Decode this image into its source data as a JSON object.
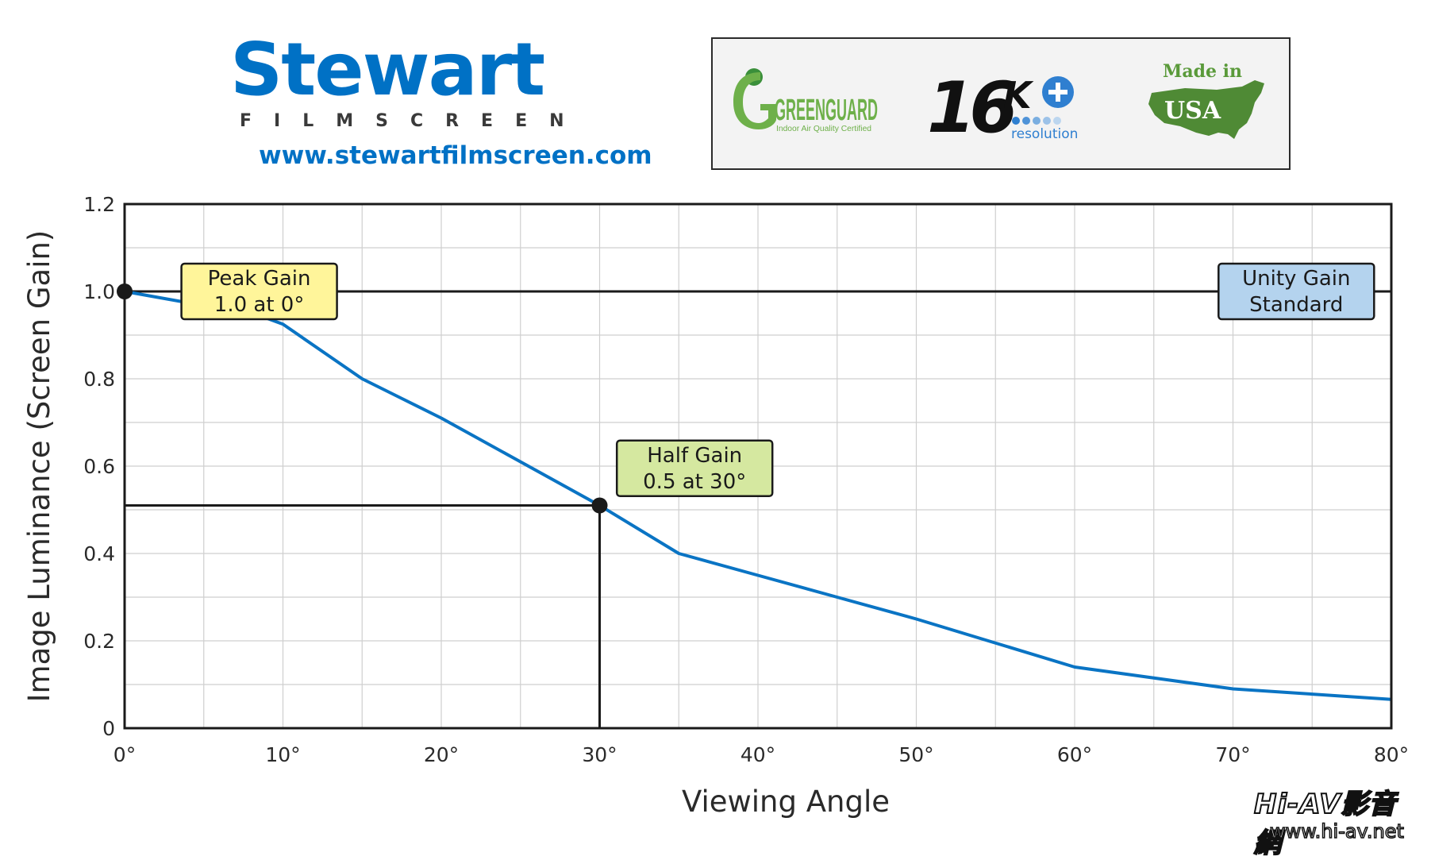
{
  "header": {
    "brand": {
      "name": "Stewart",
      "subtitle": "FILMSCREEN",
      "url": "www.stewartfilmscreen.com",
      "color": "#0071c5"
    },
    "certifications": [
      {
        "name": "greenguard-logo",
        "text": "GREENGUARD",
        "sub": "Indoor Air Quality Certified"
      },
      {
        "name": "16k-resolution-logo",
        "text": "16K",
        "sub": "resolution"
      },
      {
        "name": "made-in-usa-logo",
        "text": "Made in",
        "sub": "USA"
      }
    ]
  },
  "chart_data": {
    "type": "line",
    "xlabel": "Viewing Angle",
    "ylabel": "Image Luminance (Screen Gain)",
    "xlim": [
      0,
      80
    ],
    "ylim": [
      0,
      1.2
    ],
    "x_ticks": [
      "0°",
      "10°",
      "20°",
      "30°",
      "40°",
      "50°",
      "60°",
      "70°",
      "80°"
    ],
    "x_tick_values": [
      0,
      10,
      20,
      30,
      40,
      50,
      60,
      70,
      80
    ],
    "y_ticks": [
      "0",
      "0.2",
      "0.4",
      "0.6",
      "0.8",
      "1.0",
      "1.2"
    ],
    "y_tick_values": [
      0,
      0.2,
      0.4,
      0.6,
      0.8,
      1.0,
      1.2
    ],
    "grid": true,
    "grid_x_step": 5,
    "grid_y_step": 0.1,
    "series": [
      {
        "color": "#0a74c4",
        "x": [
          0,
          8.5,
          10,
          15,
          20,
          25,
          30,
          35,
          40,
          45,
          50,
          55,
          60,
          65,
          70,
          75,
          80
        ],
        "y": [
          1.0,
          0.945,
          0.925,
          0.8,
          0.71,
          0.61,
          0.51,
          0.4,
          0.35,
          0.3,
          0.25,
          0.195,
          0.14,
          0.115,
          0.09,
          0.078,
          0.066
        ]
      }
    ],
    "reference_lines": [
      {
        "type": "horizontal",
        "y": 1.0,
        "x_from": 0,
        "x_to": 80
      },
      {
        "type": "horizontal",
        "y": 0.51,
        "x_from": 0,
        "x_to": 30
      },
      {
        "type": "vertical",
        "x": 30,
        "y_from": 0,
        "y_to": 0.51
      }
    ],
    "markers": [
      {
        "x": 0,
        "y": 1.0
      },
      {
        "x": 30,
        "y": 0.51
      }
    ],
    "annotations": [
      {
        "lines": [
          "Peak Gain",
          "1.0 at 0°"
        ],
        "bg": "#fff59a",
        "x": 8.5,
        "y": 1.0
      },
      {
        "lines": [
          "Half Gain",
          "0.5 at 30°"
        ],
        "bg": "#d5e8a0",
        "x": 36,
        "y": 0.595
      },
      {
        "lines": [
          "Unity Gain",
          "Standard"
        ],
        "bg": "#b4d3ee",
        "x": 74,
        "y": 1.0
      }
    ]
  },
  "watermark": {
    "logo": "Hi-AV影音網",
    "url": "www.hi-av.net"
  }
}
